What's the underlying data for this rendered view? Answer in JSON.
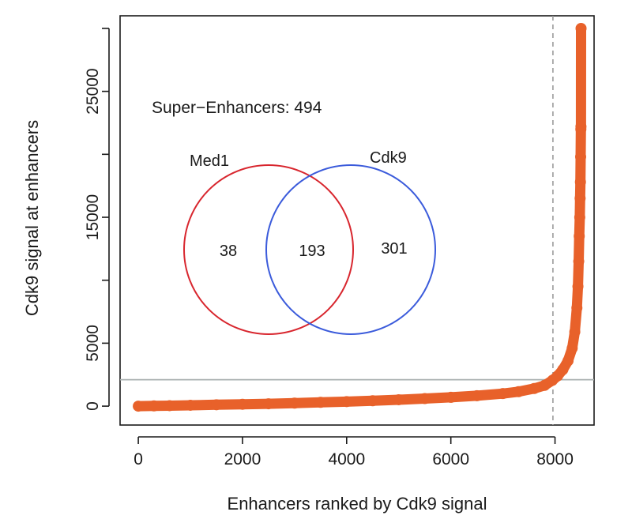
{
  "chart_data": {
    "type": "scatter",
    "title": "",
    "xlabel": "Enhancers ranked by  Cdk9 signal",
    "ylabel": "Cdk9  signal at enhancers",
    "xlim": [
      -350,
      8750
    ],
    "ylim": [
      -1500,
      31000
    ],
    "x_ticks": [
      "0",
      "2000",
      "4000",
      "6000",
      "8000"
    ],
    "y_ticks": [
      "0",
      "5000",
      "15000",
      "25000"
    ],
    "grid": false,
    "cutoff": {
      "x": 7960,
      "y": 2100
    },
    "series": [
      {
        "color": "#e8612a",
        "points": [
          [
            0,
            0
          ],
          [
            300,
            20
          ],
          [
            600,
            40
          ],
          [
            1000,
            70
          ],
          [
            1500,
            110
          ],
          [
            2000,
            150
          ],
          [
            2500,
            190
          ],
          [
            3000,
            240
          ],
          [
            3500,
            300
          ],
          [
            4000,
            360
          ],
          [
            4500,
            430
          ],
          [
            5000,
            510
          ],
          [
            5500,
            600
          ],
          [
            6000,
            700
          ],
          [
            6500,
            830
          ],
          [
            7000,
            1000
          ],
          [
            7300,
            1150
          ],
          [
            7600,
            1400
          ],
          [
            7800,
            1650
          ],
          [
            7950,
            2050
          ],
          [
            8050,
            2400
          ],
          [
            8150,
            2900
          ],
          [
            8250,
            3600
          ],
          [
            8330,
            4600
          ],
          [
            8380,
            5900
          ],
          [
            8420,
            7800
          ],
          [
            8440,
            9500
          ],
          [
            8455,
            11500
          ],
          [
            8465,
            13500
          ],
          [
            8475,
            15000
          ],
          [
            8482,
            16500
          ],
          [
            8488,
            17800
          ],
          [
            8492,
            19800
          ],
          [
            8496,
            22000
          ],
          [
            8498,
            22200
          ],
          [
            8500,
            30000
          ]
        ]
      }
    ],
    "annotations": {
      "super_enhancers": "Super−Enhancers:  494",
      "venn": {
        "left_label": "Med1",
        "right_label": "Cdk9",
        "left_only": "38",
        "overlap": "193",
        "right_only": "301",
        "left_color": "#d8262e",
        "right_color": "#3b5bdb"
      }
    }
  }
}
